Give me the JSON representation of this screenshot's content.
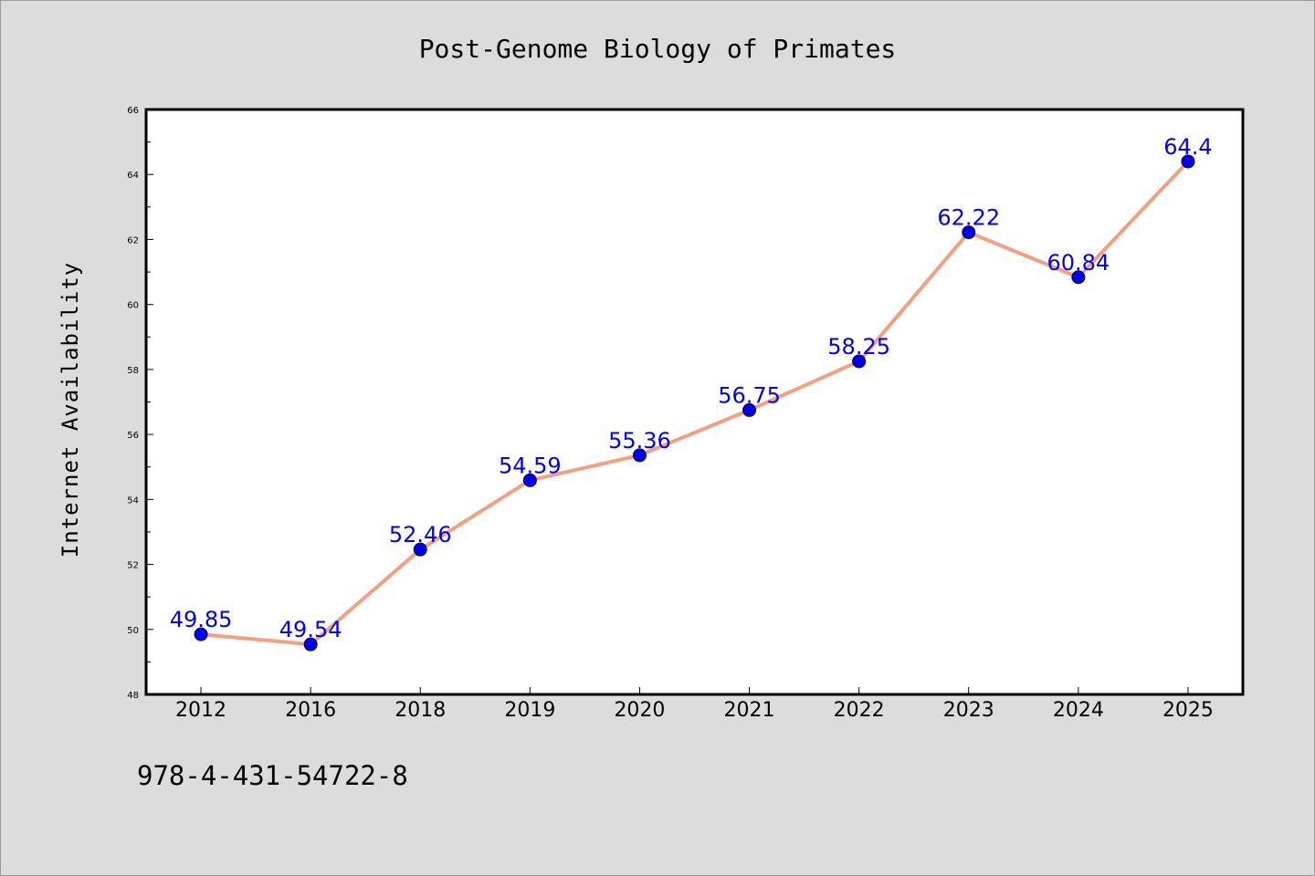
{
  "chart_data": {
    "type": "line",
    "title": "Post-Genome Biology of Primates",
    "xlabel": "",
    "ylabel": "Internet Availability",
    "categories": [
      "2012",
      "2016",
      "2018",
      "2019",
      "2020",
      "2021",
      "2022",
      "2023",
      "2024",
      "2025"
    ],
    "values": [
      49.85,
      49.54,
      52.46,
      54.59,
      55.36,
      56.75,
      58.25,
      62.22,
      60.84,
      64.4
    ],
    "data_labels": [
      "49.85",
      "49.54",
      "52.46",
      "54.59",
      "55.36",
      "56.75",
      "58.25",
      "62.22",
      "60.84",
      "64.4"
    ],
    "ylim": [
      48,
      66
    ],
    "yticks": [
      "48",
      "50",
      "52",
      "54",
      "56",
      "58",
      "60",
      "62",
      "64",
      "66"
    ],
    "grid": false,
    "line_color": "#f4a07e",
    "marker_color": "#0000ee",
    "label_color": "#0000ff"
  },
  "footnote": "978-4-431-54722-8"
}
